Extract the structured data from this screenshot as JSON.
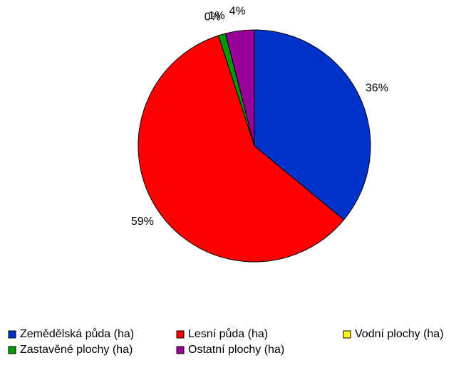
{
  "chart_data": {
    "type": "pie",
    "categories": [
      "Zemědělská půda (ha)",
      "Lesní půda (ha)",
      "Vodní plochy (ha)",
      "Zastavěné plochy (ha)",
      "Ostatní plochy (ha)"
    ],
    "values": [
      36,
      59,
      0,
      1,
      4
    ],
    "value_labels": [
      "36%",
      "59%",
      "0%",
      "1%",
      "4%"
    ],
    "colors": [
      "#0033cc",
      "#ff0000",
      "#ffff00",
      "#009900",
      "#990099"
    ],
    "legend": "bottom"
  }
}
